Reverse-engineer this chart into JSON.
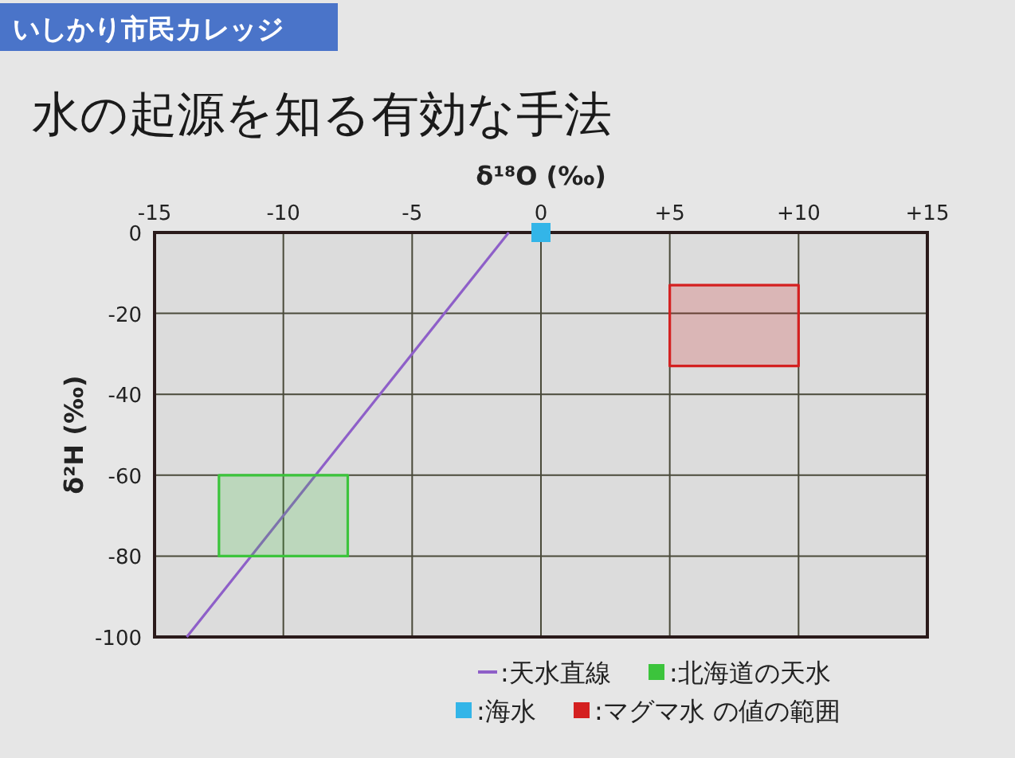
{
  "chart_data": {
    "type": "line",
    "subtitle": "いしかり市民カレッジ",
    "title": "水の起源を知る有効な手法",
    "xlabel": "δ¹⁸O (‰)",
    "ylabel": "δ²H (‰)",
    "xlim": [
      -15,
      15
    ],
    "xticks": [
      -15,
      -10,
      -5,
      0,
      {
        "value": 5,
        "label": "+5"
      },
      {
        "value": 10,
        "label": "+10"
      },
      {
        "value": 15,
        "label": "+15"
      }
    ],
    "ylim": [
      -100,
      0
    ],
    "yticks": [
      -100,
      -80,
      -60,
      -40,
      -20,
      0
    ],
    "grid": true,
    "legend": "bottom right",
    "series": [
      {
        "name": ":天水直線",
        "color": "#8e5fc8",
        "x": [
          -13.75,
          -1.25
        ],
        "values": [
          -100,
          0
        ]
      },
      {
        "name": ":北海道の天水",
        "type": "area",
        "color": "#3cc43c",
        "x": [
          -12.5,
          -12.5,
          -7.5,
          -7.5
        ],
        "values": [
          -80,
          -60,
          -60,
          -80
        ]
      },
      {
        "name": ":海水",
        "type": "scatter",
        "color": "#33b5e8",
        "marker": "square",
        "x": [
          0
        ],
        "values": [
          0
        ]
      },
      {
        "name": ":マグマ水 の値の範囲",
        "type": "area",
        "color": "#d42020",
        "x": [
          5,
          5,
          10,
          10
        ],
        "values": [
          -33,
          -13,
          -13,
          -33
        ]
      }
    ]
  }
}
